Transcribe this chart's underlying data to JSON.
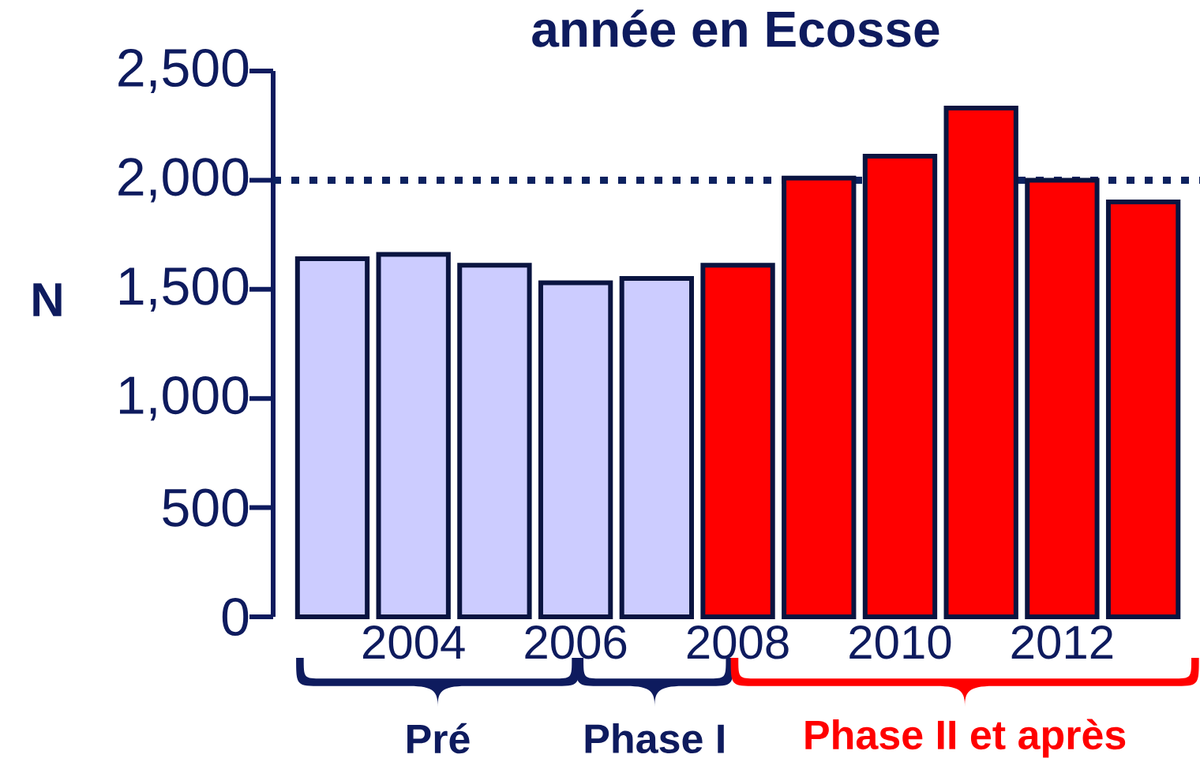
{
  "chart_data": {
    "type": "bar",
    "title": "année en Ecosse",
    "ylabel": "N",
    "categories": [
      null,
      "2004",
      null,
      "2006",
      null,
      "2008",
      null,
      "2010",
      null,
      "2012",
      null
    ],
    "values": [
      1640,
      1660,
      1610,
      1530,
      1550,
      1610,
      2010,
      2110,
      2330,
      2000,
      1900
    ],
    "colors": [
      "#ccccff",
      "#ccccff",
      "#ccccff",
      "#ccccff",
      "#ccccff",
      "#ff0000",
      "#ff0000",
      "#ff0000",
      "#ff0000",
      "#ff0000",
      "#ff0000"
    ],
    "ylim": [
      0,
      2500
    ],
    "yticks": [
      0,
      500,
      {
        "value": 1000,
        "label": "1,000"
      },
      {
        "value": 1500,
        "label": "1,500"
      },
      {
        "value": 2000,
        "label": "2,000"
      },
      {
        "value": 2500,
        "label": "2,500"
      }
    ],
    "ref_lines": [
      {
        "axis": "y",
        "value": 2000,
        "color": "#0d2260",
        "line_style": "dotted"
      }
    ],
    "annotations": [
      "Pré",
      "Phase I",
      "Phase II et après"
    ]
  }
}
